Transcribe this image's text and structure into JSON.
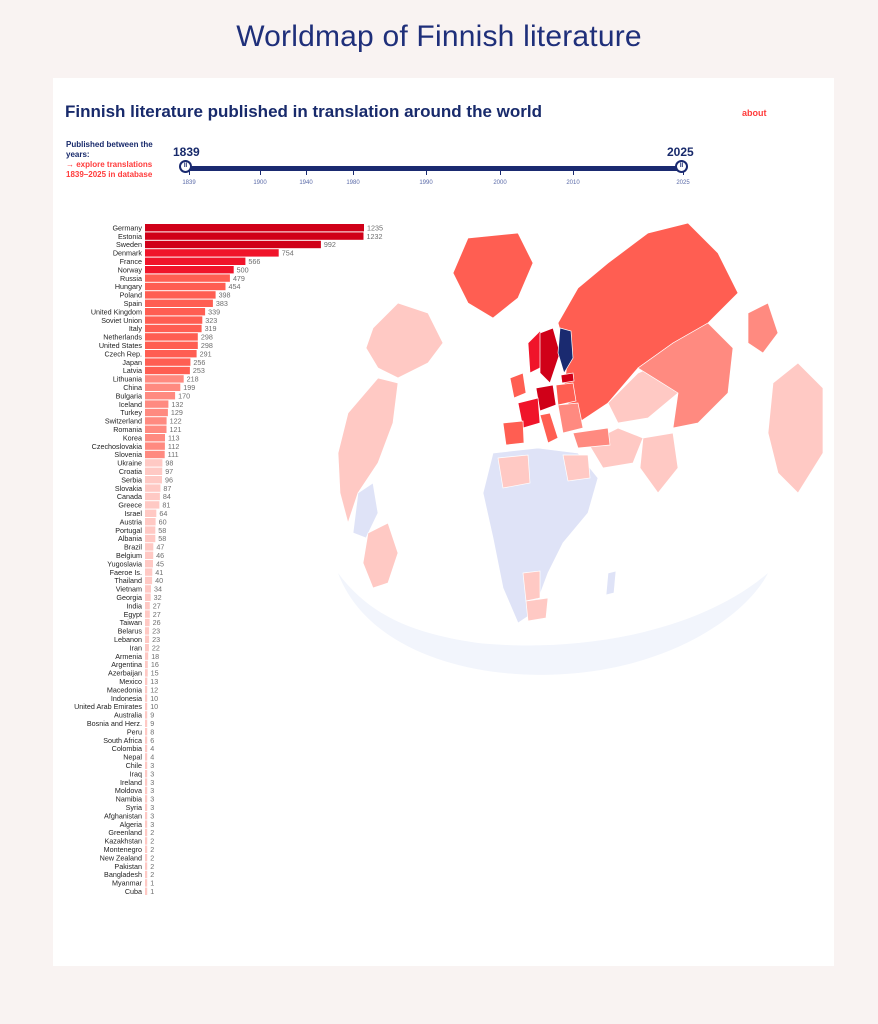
{
  "page": {
    "title": "Worldmap of Finnish literature"
  },
  "card": {
    "title": "Finnish literature published in translation around the world",
    "about": "about"
  },
  "filter": {
    "published_label": "Published between the years:",
    "explore_link": "→ explore translations 1839–2025 in database",
    "start_year": "1839",
    "end_year": "2025",
    "range_start": 1839,
    "range_end": 2025,
    "handle_glyph": "II",
    "ticks": [
      "1839",
      "1900",
      "1940",
      "1980",
      "1990",
      "2000",
      "2010",
      "2025"
    ]
  },
  "colors": {
    "darkest": "#d00018",
    "dark": "#f0142a",
    "mid": "#ff5e52",
    "light": "#ff8a80",
    "lightest": "#ffc9c4",
    "nodata": "#dfe3f7",
    "finland": "#1a2a70",
    "ocean": "#f5f7fd"
  },
  "chart_data": {
    "type": "bar",
    "orientation": "horizontal",
    "title": "Finnish literature published in translation around the world",
    "categories": [
      "Germany",
      "Estonia",
      "Sweden",
      "Denmark",
      "France",
      "Norway",
      "Russia",
      "Hungary",
      "Poland",
      "Spain",
      "United Kingdom",
      "Soviet Union",
      "Italy",
      "Netherlands",
      "United States",
      "Czech Rep.",
      "Japan",
      "Latvia",
      "Lithuania",
      "China",
      "Bulgaria",
      "Iceland",
      "Turkey",
      "Switzerland",
      "Romania",
      "Korea",
      "Czechoslovakia",
      "Slovenia",
      "Ukraine",
      "Croatia",
      "Serbia",
      "Slovakia",
      "Canada",
      "Greece",
      "Israel",
      "Austria",
      "Portugal",
      "Albania",
      "Brazil",
      "Belgium",
      "Yugoslavia",
      "Faeroe Is.",
      "Thailand",
      "Vietnam",
      "Georgia",
      "India",
      "Egypt",
      "Taiwan",
      "Belarus",
      "Lebanon",
      "Iran",
      "Armenia",
      "Argentina",
      "Azerbaijan",
      "Mexico",
      "Macedonia",
      "Indonesia",
      "United Arab Emirates",
      "Australia",
      "Bosnia and Herz.",
      "Peru",
      "South Africa",
      "Colombia",
      "Nepal",
      "Chile",
      "Iraq",
      "Ireland",
      "Moldova",
      "Namibia",
      "Syria",
      "Afghanistan",
      "Algeria",
      "Greenland",
      "Kazakhstan",
      "Montenegro",
      "New Zealand",
      "Pakistan",
      "Bangladesh",
      "Myanmar",
      "Cuba"
    ],
    "values": [
      1235,
      1232,
      992,
      754,
      566,
      500,
      479,
      454,
      398,
      383,
      339,
      323,
      319,
      298,
      298,
      291,
      256,
      253,
      218,
      199,
      170,
      132,
      129,
      122,
      121,
      113,
      112,
      111,
      98,
      97,
      96,
      87,
      84,
      81,
      64,
      60,
      58,
      58,
      47,
      46,
      45,
      41,
      40,
      34,
      32,
      27,
      27,
      26,
      23,
      23,
      22,
      18,
      16,
      15,
      13,
      12,
      10,
      10,
      9,
      9,
      8,
      6,
      4,
      4,
      3,
      3,
      3,
      3,
      3,
      3,
      3,
      3,
      2,
      2,
      2,
      2,
      2,
      2,
      1,
      1
    ],
    "xlabel": "",
    "ylabel": ""
  }
}
